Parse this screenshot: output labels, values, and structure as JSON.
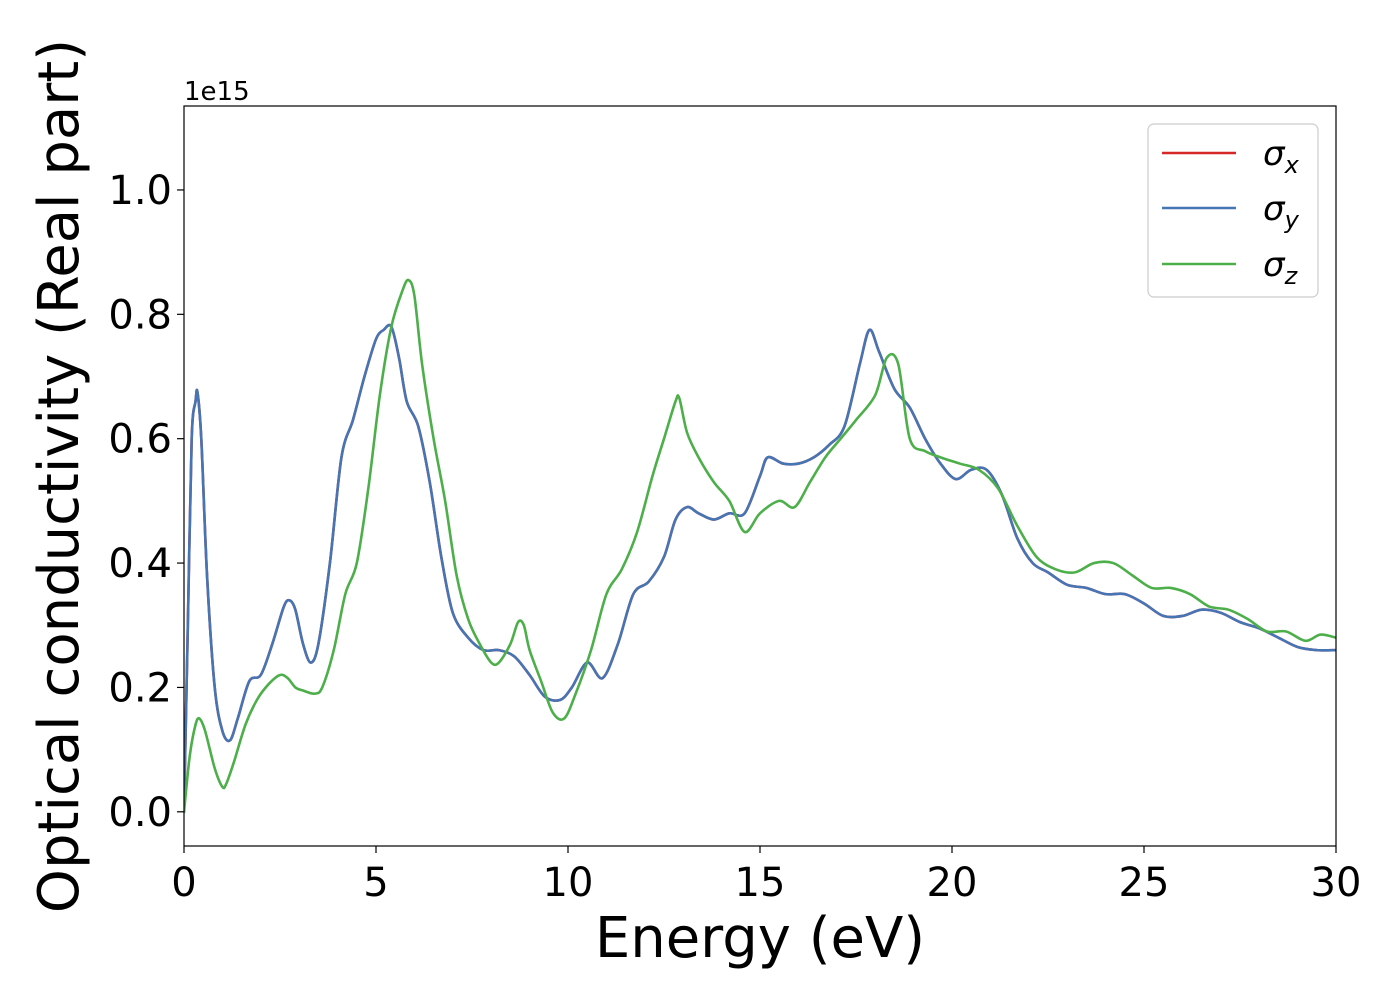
{
  "chart_data": {
    "type": "line",
    "title": "",
    "xlabel": "Energy (eV)",
    "ylabel": "Optical conductivity (Real part)",
    "y_offset_label": "1e15",
    "xlim": [
      0,
      30
    ],
    "ylim": [
      -0.055,
      1.135
    ],
    "xticks": [
      0,
      5,
      10,
      15,
      20,
      25,
      30
    ],
    "xtick_labels": [
      "0",
      "5",
      "10",
      "15",
      "20",
      "25",
      "30"
    ],
    "yticks": [
      0.0,
      0.2,
      0.4,
      0.6,
      0.8,
      1.0
    ],
    "ytick_labels": [
      "0.0",
      "0.2",
      "0.4",
      "0.6",
      "0.8",
      "1.0"
    ],
    "grid": false,
    "legend_position": "top-right",
    "series": [
      {
        "name": "σx",
        "symbol": "σ",
        "subscript": "x",
        "color": "#d62728",
        "x": [
          0,
          0.1,
          0.2,
          0.3,
          0.35,
          0.45,
          0.6,
          0.8,
          1.0,
          1.2,
          1.4,
          1.7,
          2.0,
          2.3,
          2.6,
          2.75,
          2.9,
          3.1,
          3.3,
          3.5,
          3.8,
          4.1,
          4.4,
          4.7,
          5.0,
          5.2,
          5.4,
          5.6,
          5.8,
          6.1,
          6.4,
          6.7,
          7.0,
          7.4,
          7.8,
          8.2,
          8.6,
          9.0,
          9.4,
          9.8,
          10.1,
          10.5,
          10.9,
          11.3,
          11.7,
          12.1,
          12.5,
          12.8,
          13.1,
          13.4,
          13.8,
          14.2,
          14.6,
          15.0,
          15.2,
          15.6,
          16.0,
          16.4,
          16.8,
          17.2,
          17.6,
          17.85,
          18.1,
          18.5,
          18.9,
          19.3,
          19.7,
          20.1,
          20.5,
          20.9,
          21.3,
          21.7,
          22.1,
          22.5,
          23.0,
          23.5,
          24.0,
          24.5,
          25.0,
          25.5,
          26.0,
          26.5,
          27.0,
          27.5,
          28.0,
          28.5,
          29.0,
          29.5,
          30.0
        ],
        "y": [
          0.0,
          0.3,
          0.6,
          0.66,
          0.675,
          0.6,
          0.38,
          0.2,
          0.13,
          0.115,
          0.15,
          0.21,
          0.22,
          0.27,
          0.33,
          0.34,
          0.325,
          0.27,
          0.24,
          0.27,
          0.4,
          0.57,
          0.63,
          0.7,
          0.76,
          0.775,
          0.78,
          0.73,
          0.66,
          0.62,
          0.53,
          0.41,
          0.32,
          0.28,
          0.26,
          0.26,
          0.25,
          0.22,
          0.185,
          0.18,
          0.2,
          0.24,
          0.215,
          0.27,
          0.35,
          0.37,
          0.41,
          0.47,
          0.49,
          0.48,
          0.47,
          0.48,
          0.48,
          0.54,
          0.57,
          0.56,
          0.56,
          0.57,
          0.59,
          0.62,
          0.72,
          0.775,
          0.74,
          0.68,
          0.65,
          0.6,
          0.56,
          0.535,
          0.55,
          0.55,
          0.51,
          0.44,
          0.4,
          0.385,
          0.365,
          0.36,
          0.35,
          0.35,
          0.335,
          0.315,
          0.315,
          0.325,
          0.32,
          0.305,
          0.295,
          0.28,
          0.265,
          0.26,
          0.26
        ]
      },
      {
        "name": "σy",
        "symbol": "σ",
        "subscript": "y",
        "color": "#4575b4",
        "x": [
          0,
          0.1,
          0.2,
          0.3,
          0.35,
          0.45,
          0.6,
          0.8,
          1.0,
          1.2,
          1.4,
          1.7,
          2.0,
          2.3,
          2.6,
          2.75,
          2.9,
          3.1,
          3.3,
          3.5,
          3.8,
          4.1,
          4.4,
          4.7,
          5.0,
          5.2,
          5.4,
          5.6,
          5.8,
          6.1,
          6.4,
          6.7,
          7.0,
          7.4,
          7.8,
          8.2,
          8.6,
          9.0,
          9.4,
          9.8,
          10.1,
          10.5,
          10.9,
          11.3,
          11.7,
          12.1,
          12.5,
          12.8,
          13.1,
          13.4,
          13.8,
          14.2,
          14.6,
          15.0,
          15.2,
          15.6,
          16.0,
          16.4,
          16.8,
          17.2,
          17.6,
          17.85,
          18.1,
          18.5,
          18.9,
          19.3,
          19.7,
          20.1,
          20.5,
          20.9,
          21.3,
          21.7,
          22.1,
          22.5,
          23.0,
          23.5,
          24.0,
          24.5,
          25.0,
          25.5,
          26.0,
          26.5,
          27.0,
          27.5,
          28.0,
          28.5,
          29.0,
          29.5,
          30.0
        ],
        "y": [
          0.0,
          0.3,
          0.6,
          0.66,
          0.675,
          0.6,
          0.38,
          0.2,
          0.13,
          0.115,
          0.15,
          0.21,
          0.22,
          0.27,
          0.33,
          0.34,
          0.325,
          0.27,
          0.24,
          0.27,
          0.4,
          0.57,
          0.63,
          0.7,
          0.76,
          0.775,
          0.78,
          0.73,
          0.66,
          0.62,
          0.53,
          0.41,
          0.32,
          0.28,
          0.26,
          0.26,
          0.25,
          0.22,
          0.185,
          0.18,
          0.2,
          0.24,
          0.215,
          0.27,
          0.35,
          0.37,
          0.41,
          0.47,
          0.49,
          0.48,
          0.47,
          0.48,
          0.48,
          0.54,
          0.57,
          0.56,
          0.56,
          0.57,
          0.59,
          0.62,
          0.72,
          0.775,
          0.74,
          0.68,
          0.65,
          0.6,
          0.56,
          0.535,
          0.55,
          0.55,
          0.51,
          0.44,
          0.4,
          0.385,
          0.365,
          0.36,
          0.35,
          0.35,
          0.335,
          0.315,
          0.315,
          0.325,
          0.32,
          0.305,
          0.295,
          0.28,
          0.265,
          0.26,
          0.26
        ]
      },
      {
        "name": "σz",
        "symbol": "σ",
        "subscript": "z",
        "color": "#4daf4a",
        "x": [
          0,
          0.15,
          0.3,
          0.4,
          0.55,
          0.8,
          1.0,
          1.1,
          1.3,
          1.6,
          1.9,
          2.2,
          2.5,
          2.7,
          2.9,
          3.1,
          3.4,
          3.6,
          3.9,
          4.2,
          4.5,
          4.8,
          5.1,
          5.4,
          5.7,
          5.85,
          6.0,
          6.2,
          6.5,
          6.8,
          7.1,
          7.4,
          7.7,
          8.0,
          8.2,
          8.5,
          8.7,
          8.85,
          9.0,
          9.3,
          9.6,
          9.9,
          10.2,
          10.6,
          11.0,
          11.4,
          11.8,
          12.2,
          12.5,
          12.8,
          12.9,
          13.1,
          13.4,
          13.8,
          14.2,
          14.6,
          15.0,
          15.5,
          15.9,
          16.3,
          16.7,
          17.1,
          17.5,
          18.0,
          18.3,
          18.6,
          18.9,
          19.3,
          19.7,
          20.2,
          20.7,
          21.2,
          21.7,
          22.2,
          22.7,
          23.2,
          23.7,
          24.2,
          24.7,
          25.2,
          25.7,
          26.2,
          26.7,
          27.2,
          27.7,
          28.2,
          28.7,
          29.2,
          29.6,
          30.0
        ],
        "y": [
          0.0,
          0.09,
          0.14,
          0.15,
          0.13,
          0.07,
          0.04,
          0.045,
          0.08,
          0.14,
          0.18,
          0.205,
          0.22,
          0.215,
          0.2,
          0.195,
          0.19,
          0.2,
          0.26,
          0.35,
          0.4,
          0.52,
          0.67,
          0.78,
          0.84,
          0.855,
          0.83,
          0.72,
          0.6,
          0.5,
          0.38,
          0.31,
          0.27,
          0.24,
          0.24,
          0.27,
          0.305,
          0.3,
          0.26,
          0.21,
          0.16,
          0.15,
          0.19,
          0.26,
          0.35,
          0.39,
          0.45,
          0.54,
          0.6,
          0.66,
          0.665,
          0.61,
          0.57,
          0.53,
          0.5,
          0.45,
          0.48,
          0.5,
          0.49,
          0.53,
          0.57,
          0.6,
          0.63,
          0.67,
          0.73,
          0.72,
          0.6,
          0.58,
          0.57,
          0.56,
          0.55,
          0.52,
          0.46,
          0.41,
          0.39,
          0.385,
          0.4,
          0.4,
          0.38,
          0.36,
          0.36,
          0.35,
          0.33,
          0.325,
          0.31,
          0.29,
          0.29,
          0.275,
          0.285,
          0.28
        ]
      }
    ]
  }
}
